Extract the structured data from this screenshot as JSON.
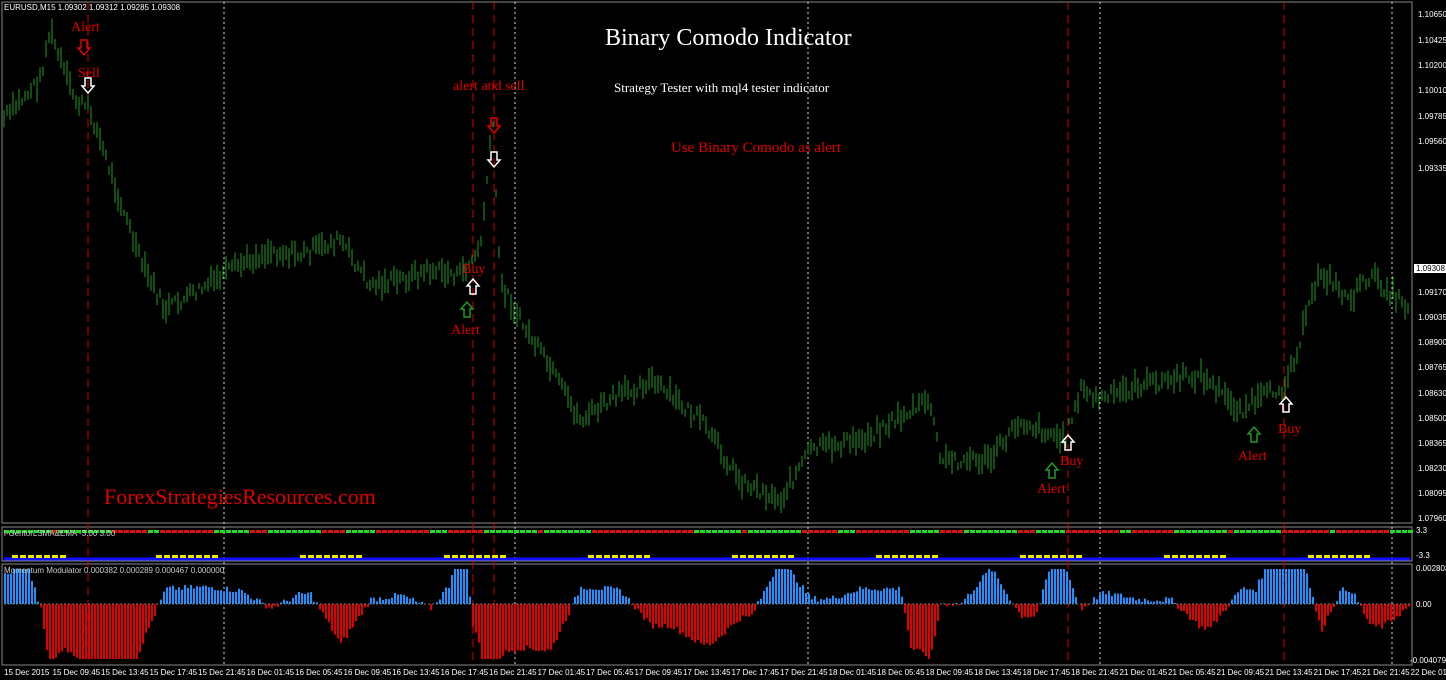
{
  "symbol_header": "EURUSD,M15  1.09302 1.09312 1.09285 1.09308",
  "title": "Binary Comodo Indicator",
  "subtitle": "Strategy Tester with mql4 tester indicator",
  "note": "Use Binary Comodo as alert",
  "watermark": "ForexStrategiesResources.com",
  "signals": [
    {
      "text": "Alert"
    },
    {
      "text": "Sell"
    },
    {
      "text": "alert and sell"
    },
    {
      "text": "Buy"
    },
    {
      "text": "Alert"
    },
    {
      "text": "Buy"
    },
    {
      "text": "Alert"
    },
    {
      "text": "Buy"
    },
    {
      "text": "Alert"
    }
  ],
  "price_scale": [
    "1.10650",
    "1.10425",
    "1.10200",
    "1.10010",
    "1.09785",
    "1.09560",
    "1.09335",
    "1.09308",
    "1.09170",
    "1.09035",
    "1.08900",
    "1.08765",
    "1.08630",
    "1.08500",
    "1.08365",
    "1.08230",
    "1.08095",
    "1.07960"
  ],
  "current_price": "1.09308",
  "sub1": {
    "label": "i-GentorLSMA&EMA -3.00 3.00",
    "scale": [
      "3.3",
      "-3.3"
    ]
  },
  "sub2": {
    "label": "Momentum Modulator 0.000382 0.000289 0.000467 0.000000",
    "scale": [
      "0.002803",
      "0.00",
      "-0.004079"
    ]
  },
  "time_axis": [
    "15 Dec 2015",
    "15 Dec 09:45",
    "15 Dec 13:45",
    "15 Dec 17:45",
    "15 Dec 21:45",
    "16 Dec 01:45",
    "16 Dec 05:45",
    "16 Dec 09:45",
    "16 Dec 13:45",
    "16 Dec 17:45",
    "16 Dec 21:45",
    "17 Dec 01:45",
    "17 Dec 05:45",
    "17 Dec 09:45",
    "17 Dec 13:45",
    "17 Dec 17:45",
    "17 Dec 21:45",
    "18 Dec 01:45",
    "18 Dec 05:45",
    "18 Dec 09:45",
    "18 Dec 13:45",
    "18 Dec 17:45",
    "18 Dec 21:45",
    "21 Dec 01:45",
    "21 Dec 05:45",
    "21 Dec 09:45",
    "21 Dec 13:45",
    "21 Dec 17:45",
    "21 Dec 21:45",
    "22 Dec 01:"
  ],
  "colors": {
    "bar": "#1f9a1f",
    "signal": "#e00000",
    "up_hist": "#1e90ff",
    "down_hist": "#e00000"
  }
}
